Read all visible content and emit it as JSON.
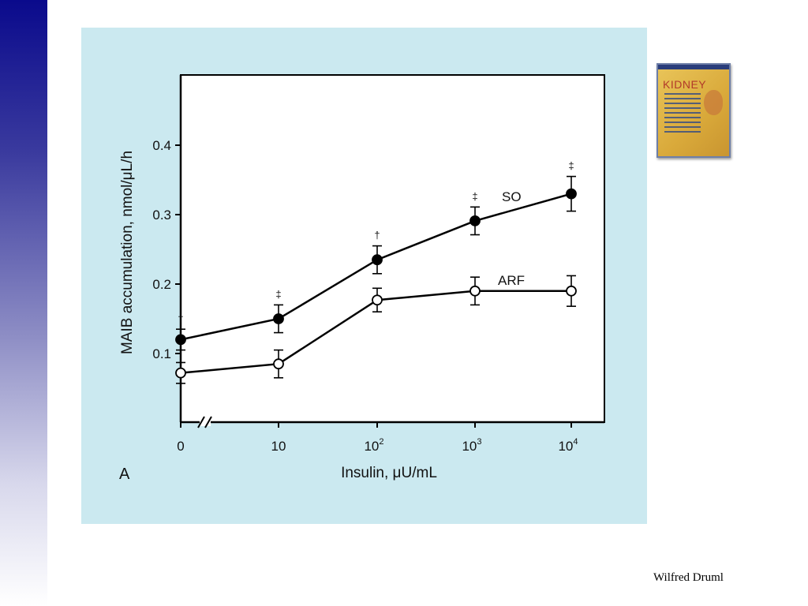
{
  "slide": {
    "footer": "Wilfred Druml"
  },
  "book": {
    "title": "KIDNEY",
    "icon": "book-cover-thumbnail"
  },
  "chart_data": {
    "type": "line",
    "panel_label": "A",
    "xlabel": "Insulin, μU/mL",
    "ylabel": "MAIB accumulation, nmol/μL/h",
    "x_tick_labels": [
      {
        "base": "0",
        "exp": ""
      },
      {
        "base": "10",
        "exp": ""
      },
      {
        "base": "10",
        "exp": "2"
      },
      {
        "base": "10",
        "exp": "3"
      },
      {
        "base": "10",
        "exp": "4"
      }
    ],
    "y_ticks": [
      0.1,
      0.2,
      0.3,
      0.4
    ],
    "y_tick_labels": [
      "0.1",
      "0.2",
      "0.3",
      "0.4"
    ],
    "ylim": [
      0,
      0.5
    ],
    "x_scale": "log (broken axis after 0)",
    "series": [
      {
        "name": "SO",
        "marker": "filled-circle",
        "x": [
          "0",
          "10",
          "10^2",
          "10^3",
          "10^4"
        ],
        "values": [
          0.12,
          0.15,
          0.235,
          0.291,
          0.33
        ],
        "error": [
          0.015,
          0.02,
          0.02,
          0.02,
          0.025
        ],
        "annotations": [
          "†",
          "‡",
          "†",
          "‡",
          "‡"
        ]
      },
      {
        "name": "ARF",
        "marker": "open-circle",
        "x": [
          "0",
          "10",
          "10^2",
          "10^3",
          "10^4"
        ],
        "values": [
          0.072,
          0.085,
          0.177,
          0.19,
          0.19
        ],
        "error": [
          0.015,
          0.02,
          0.017,
          0.02,
          0.022
        ]
      }
    ],
    "grid": false
  }
}
